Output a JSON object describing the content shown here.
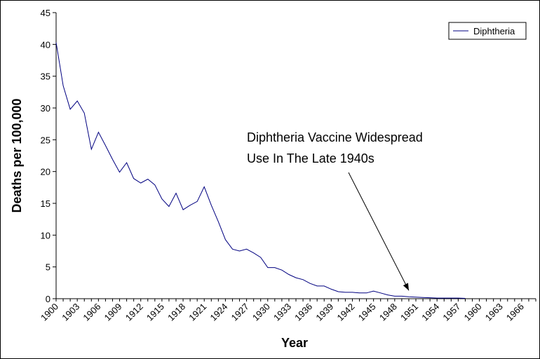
{
  "chart_data": {
    "type": "line",
    "title": "",
    "xlabel": "Year",
    "ylabel": "Deaths per 100,000",
    "ylim": [
      0,
      45
    ],
    "y_ticks": [
      "0",
      "5",
      "10",
      "15",
      "20",
      "25",
      "30",
      "35",
      "40",
      "45"
    ],
    "xlim": [
      1900,
      1968
    ],
    "x_tick_labels": [
      "1900",
      "1903",
      "1906",
      "1909",
      "1912",
      "1915",
      "1918",
      "1921",
      "1924",
      "1927",
      "1930",
      "1933",
      "1936",
      "1939",
      "1942",
      "1945",
      "1948",
      "1951",
      "1954",
      "1957",
      "1960",
      "1963",
      "1966"
    ],
    "grid": false,
    "legend": "top-right",
    "series": [
      {
        "name": "Diphtheria",
        "color": "#000080",
        "x": [
          1900,
          1901,
          1902,
          1903,
          1904,
          1905,
          1906,
          1907,
          1908,
          1909,
          1910,
          1911,
          1912,
          1913,
          1914,
          1915,
          1916,
          1917,
          1918,
          1919,
          1920,
          1921,
          1922,
          1923,
          1924,
          1925,
          1926,
          1927,
          1928,
          1929,
          1930,
          1931,
          1932,
          1933,
          1934,
          1935,
          1936,
          1937,
          1938,
          1939,
          1940,
          1941,
          1942,
          1943,
          1944,
          1945,
          1946,
          1947,
          1948,
          1949,
          1950,
          1951,
          1952,
          1953,
          1954,
          1955,
          1956,
          1957,
          1958
        ],
        "values": [
          40.3,
          33.5,
          29.8,
          31.1,
          29.2,
          23.5,
          26.2,
          24.1,
          21.9,
          19.9,
          21.4,
          18.9,
          18.2,
          18.8,
          17.9,
          15.7,
          14.5,
          16.6,
          14.0,
          14.7,
          15.3,
          17.6,
          14.7,
          12.1,
          9.3,
          7.8,
          7.5,
          7.8,
          7.2,
          6.5,
          4.9,
          4.9,
          4.5,
          3.8,
          3.3,
          3.0,
          2.4,
          2.0,
          2.0,
          1.5,
          1.1,
          1.0,
          1.0,
          0.9,
          0.9,
          1.2,
          0.9,
          0.6,
          0.4,
          0.4,
          0.3,
          0.25,
          0.2,
          0.15,
          0.1,
          0.1,
          0.1,
          0.1,
          0.05
        ]
      }
    ],
    "annotation": {
      "line1": "Diphtheria Vaccine Widespread",
      "line2": "Use In The Late 1940s",
      "arrow_to_x": 1950,
      "arrow_to_y": 1.3
    }
  }
}
